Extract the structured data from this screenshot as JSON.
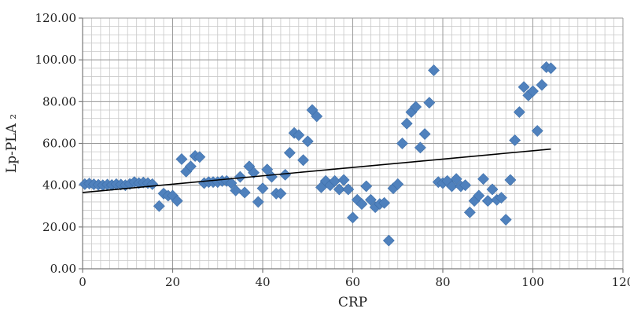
{
  "chart_data": {
    "type": "scatter",
    "title": "",
    "xlabel": "CRP",
    "ylabel": "Lp-PLA ₂",
    "xlim": [
      0,
      120
    ],
    "ylim": [
      0,
      120
    ],
    "x_ticks": [
      "0",
      "20",
      "40",
      "60",
      "80",
      "100",
      "120"
    ],
    "y_ticks": [
      "0.00",
      "20.00",
      "40.00",
      "60.00",
      "80.00",
      "100.00",
      "120.00"
    ],
    "grid": true,
    "marker": "diamond",
    "marker_color": "#4f81bd",
    "trendline": {
      "type": "linear",
      "x": [
        0,
        104
      ],
      "y": [
        36.5,
        57.3
      ],
      "color": "#000000"
    },
    "series": [
      {
        "points": [
          [
            0.5,
            40.5
          ],
          [
            1.5,
            40.8
          ],
          [
            2.5,
            40.4
          ],
          [
            3.5,
            40.2
          ],
          [
            4.5,
            40.0
          ],
          [
            5.5,
            40.3
          ],
          [
            6.5,
            40.1
          ],
          [
            7.5,
            40.5
          ],
          [
            8.5,
            40.3
          ],
          [
            9.5,
            40.0
          ],
          [
            10.5,
            40.6
          ],
          [
            11.5,
            41.5
          ],
          [
            12.5,
            41.0
          ],
          [
            13.5,
            41.3
          ],
          [
            14.5,
            41.0
          ],
          [
            15.5,
            40.5
          ],
          [
            17,
            30
          ],
          [
            18,
            36
          ],
          [
            19,
            35
          ],
          [
            20,
            35
          ],
          [
            21,
            32.5
          ],
          [
            22,
            52.5
          ],
          [
            23,
            46.5
          ],
          [
            24,
            49
          ],
          [
            25,
            54
          ],
          [
            26,
            53.5
          ],
          [
            27,
            41
          ],
          [
            28,
            41.5
          ],
          [
            29,
            41.5
          ],
          [
            30,
            41.5
          ],
          [
            31,
            42
          ],
          [
            32,
            42
          ],
          [
            33,
            41
          ],
          [
            34,
            37.5
          ],
          [
            35,
            44
          ],
          [
            36,
            36.5
          ],
          [
            37,
            49
          ],
          [
            38,
            46
          ],
          [
            39,
            32
          ],
          [
            40,
            38.5
          ],
          [
            41,
            47.5
          ],
          [
            42,
            44
          ],
          [
            43,
            36
          ],
          [
            44,
            36
          ],
          [
            45,
            45
          ],
          [
            46,
            55.5
          ],
          [
            47,
            65
          ],
          [
            48,
            64
          ],
          [
            49,
            52
          ],
          [
            50,
            61
          ],
          [
            51,
            76
          ],
          [
            52,
            73
          ],
          [
            53,
            39
          ],
          [
            54,
            42
          ],
          [
            55,
            40
          ],
          [
            56,
            42
          ],
          [
            57,
            38
          ],
          [
            58,
            42.5
          ],
          [
            59,
            38
          ],
          [
            60,
            24.5
          ],
          [
            61,
            33
          ],
          [
            62,
            31
          ],
          [
            63,
            39.5
          ],
          [
            64,
            33
          ],
          [
            65,
            29.5
          ],
          [
            66,
            31
          ],
          [
            67,
            31.5
          ],
          [
            68,
            13.5
          ],
          [
            69,
            38.5
          ],
          [
            70,
            40.5
          ],
          [
            71,
            60
          ],
          [
            72,
            69.5
          ],
          [
            73,
            75
          ],
          [
            74,
            77.5
          ],
          [
            75,
            58
          ],
          [
            76,
            64.5
          ],
          [
            77,
            79.5
          ],
          [
            78,
            95
          ],
          [
            79,
            41.5
          ],
          [
            80,
            41
          ],
          [
            81,
            42
          ],
          [
            82,
            39.5
          ],
          [
            83,
            43
          ],
          [
            84,
            39.5
          ],
          [
            85,
            40
          ],
          [
            86,
            27
          ],
          [
            87,
            32.5
          ],
          [
            88,
            35
          ],
          [
            89,
            43
          ],
          [
            90,
            32.5
          ],
          [
            91,
            38
          ],
          [
            92,
            33
          ],
          [
            93,
            34
          ],
          [
            94,
            23.5
          ],
          [
            95,
            42.5
          ],
          [
            96,
            61.5
          ],
          [
            97,
            75
          ],
          [
            98,
            87
          ],
          [
            99,
            83
          ],
          [
            100,
            85
          ],
          [
            101,
            66
          ],
          [
            102,
            88
          ],
          [
            103,
            96.5
          ],
          [
            104,
            96
          ]
        ]
      }
    ]
  }
}
